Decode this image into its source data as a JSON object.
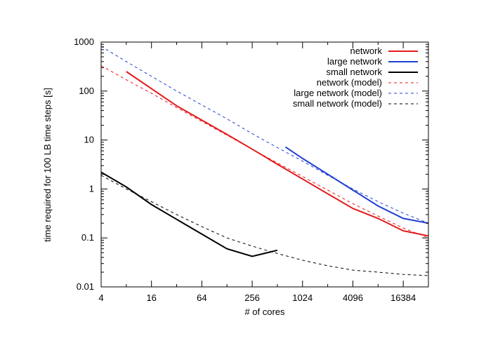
{
  "chart_data": {
    "type": "line",
    "title": "",
    "xlabel": "# of cores",
    "ylabel": "time required for 100 LB time steps [s]",
    "x_scale": "log2",
    "y_scale": "log10",
    "xlim": [
      4,
      32768
    ],
    "ylim": [
      0.01,
      1000
    ],
    "x_ticks": [
      4,
      16,
      64,
      256,
      1024,
      4096,
      16384
    ],
    "x_tick_labels": [
      "4",
      "16",
      "64",
      "256",
      "1024",
      "4096",
      "16384"
    ],
    "y_ticks": [
      0.01,
      0.1,
      1,
      10,
      100,
      1000
    ],
    "y_tick_labels": [
      "0.01",
      "0.1",
      "1",
      "10",
      "100",
      "1000"
    ],
    "grid": false,
    "legend_position": "top-right",
    "series": [
      {
        "name": "network",
        "color": "#e41a1c",
        "style": "solid",
        "x": [
          8,
          32,
          128,
          256,
          512,
          1024,
          2048,
          4096,
          8192,
          16384,
          32768
        ],
        "y": [
          250,
          50,
          13,
          6.5,
          3.2,
          1.6,
          0.8,
          0.4,
          0.25,
          0.14,
          0.11
        ]
      },
      {
        "name": "large network",
        "color": "#1f3fd6",
        "style": "solid",
        "x": [
          640,
          1024,
          2048,
          4096,
          8192,
          16384,
          32768
        ],
        "y": [
          7.2,
          4.2,
          2.0,
          0.95,
          0.45,
          0.25,
          0.2
        ]
      },
      {
        "name": "small network",
        "color": "#000000",
        "style": "solid",
        "x": [
          4,
          8,
          16,
          32,
          64,
          128,
          256,
          512
        ],
        "y": [
          2.2,
          1.1,
          0.48,
          0.24,
          0.12,
          0.06,
          0.042,
          0.056
        ]
      },
      {
        "name": "network (model)",
        "color": "#e41a1c",
        "style": "dashed",
        "x": [
          4,
          8,
          16,
          32,
          64,
          128,
          256,
          512,
          1024,
          2048,
          4096,
          8192,
          16384,
          32768
        ],
        "y": [
          330,
          170,
          90,
          46,
          24,
          12.5,
          6.5,
          3.4,
          1.8,
          0.95,
          0.5,
          0.28,
          0.16,
          0.1
        ]
      },
      {
        "name": "large network (model)",
        "color": "#1f3fd6",
        "style": "dashed",
        "x": [
          4,
          8,
          16,
          32,
          64,
          128,
          256,
          512,
          1024,
          2048,
          4096,
          8192,
          16384,
          32768
        ],
        "y": [
          820,
          400,
          200,
          100,
          52,
          27,
          13.5,
          7.0,
          3.7,
          1.9,
          1.0,
          0.55,
          0.32,
          0.2
        ]
      },
      {
        "name": "small network (model)",
        "color": "#000000",
        "style": "dashed",
        "x": [
          4,
          8,
          16,
          32,
          64,
          128,
          256,
          512,
          1024,
          2048,
          4096,
          8192,
          16384,
          32768
        ],
        "y": [
          1.9,
          1.0,
          0.55,
          0.3,
          0.17,
          0.1,
          0.068,
          0.048,
          0.035,
          0.027,
          0.022,
          0.02,
          0.018,
          0.017
        ]
      }
    ]
  }
}
